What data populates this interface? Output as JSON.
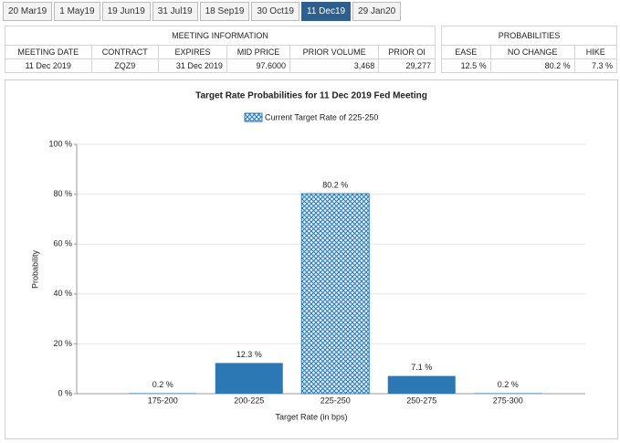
{
  "tabs": [
    "20 Mar19",
    "1 May19",
    "19 Jun19",
    "31 Jul19",
    "18 Sep19",
    "30 Oct19",
    "11 Dec19",
    "29 Jan20"
  ],
  "active_tab": 6,
  "meeting_info": {
    "title": "MEETING INFORMATION",
    "columns": [
      "MEETING DATE",
      "CONTRACT",
      "EXPIRES",
      "MID PRICE",
      "PRIOR VOLUME",
      "PRIOR OI"
    ],
    "rows": [
      [
        "11 Dec 2019",
        "ZQZ9",
        "31 Dec 2019",
        "97.6000",
        "3,468",
        "29,277"
      ]
    ]
  },
  "probabilities": {
    "title": "PROBABILITIES",
    "columns": [
      "EASE",
      "NO CHANGE",
      "HIKE"
    ],
    "rows": [
      [
        "12.5 %",
        "80.2 %",
        "7.3 %"
      ]
    ]
  },
  "chart_data": {
    "type": "bar",
    "title": "Target Rate Probabilities for 11 Dec 2019 Fed Meeting",
    "legend": "Current Target Rate of 225-250",
    "x_label": "Target Rate (in bps)",
    "y_label": "Probability",
    "categories": [
      "175-200",
      "200-225",
      "225-250",
      "250-275",
      "275-300"
    ],
    "values": [
      0.2,
      12.3,
      80.2,
      7.1,
      0.2
    ],
    "value_labels": [
      "0.2 %",
      "12.3 %",
      "80.2 %",
      "7.1 %",
      "0.2 %"
    ],
    "patterns": [
      "solid",
      "solid",
      "crosshatch",
      "solid",
      "solid"
    ],
    "color": "#2b78b5",
    "ylim": [
      0,
      100
    ],
    "yticks": [
      {
        "value": 0,
        "label": "0 %"
      },
      {
        "value": 20,
        "label": "20 %"
      },
      {
        "value": 40,
        "label": "40 %"
      },
      {
        "value": 60,
        "label": "60 %"
      },
      {
        "value": 80,
        "label": "80 %"
      },
      {
        "value": 100,
        "label": "100 %"
      }
    ],
    "grid": true
  }
}
